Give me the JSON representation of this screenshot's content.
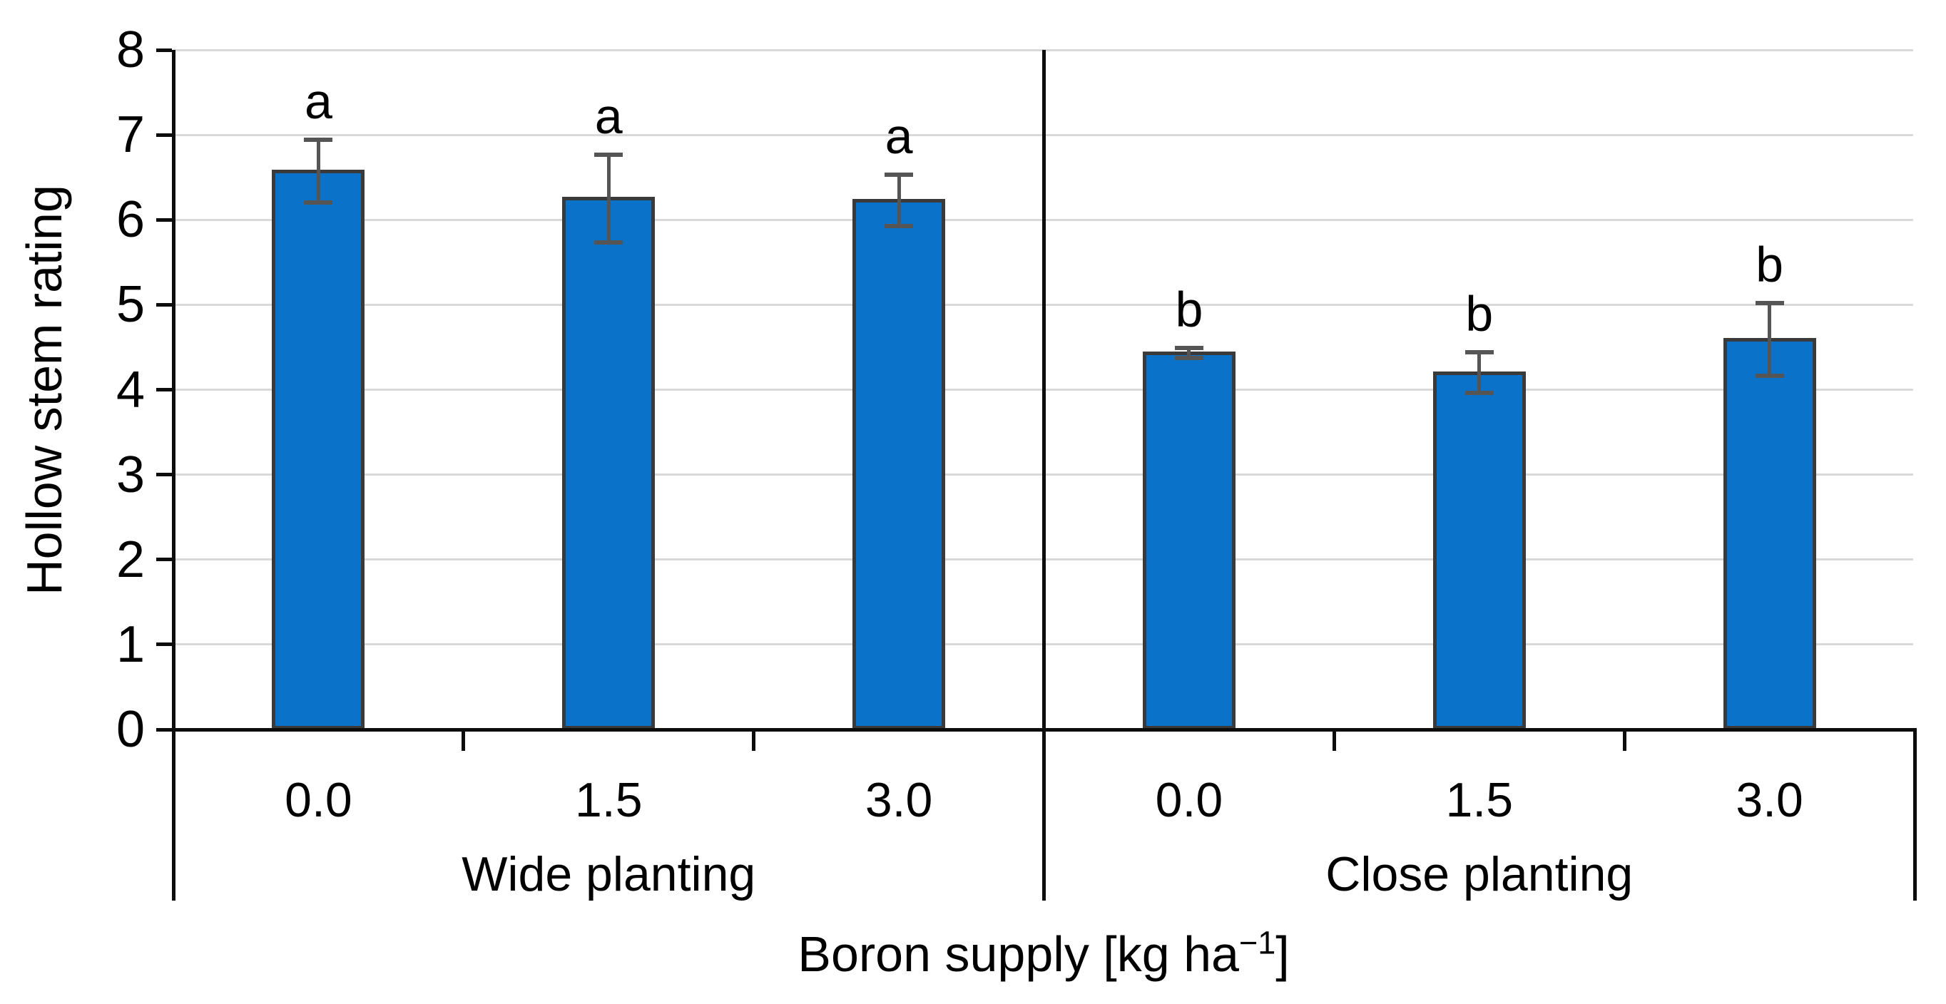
{
  "chart_data": {
    "type": "bar",
    "title": "",
    "ylabel": "Hollow stem rating",
    "xlabel": "Boron supply [kg ha⁻¹]",
    "xlabel_parts": {
      "prefix": "Boron supply [kg ha",
      "superscript": "−1",
      "suffix": "]"
    },
    "ylim": [
      0,
      8
    ],
    "yticks": [
      0,
      1,
      2,
      3,
      4,
      5,
      6,
      7,
      8
    ],
    "grid": "horizontal",
    "legend": "none",
    "colors": {
      "bar_fill": "#0a72c8",
      "bar_border": "#3a3a3a",
      "error_bar": "#555555",
      "gridline": "#d9d9d9",
      "axis": "#0d0d0d",
      "text": "#000000"
    },
    "groups": [
      {
        "label": "Wide planting",
        "categories": [
          "0.0",
          "1.5",
          "3.0"
        ],
        "values": [
          6.57,
          6.25,
          6.23
        ],
        "errors": [
          0.37,
          0.52,
          0.3
        ],
        "sig_letters": [
          "a",
          "a",
          "a"
        ]
      },
      {
        "label": "Close planting",
        "categories": [
          "0.0",
          "1.5",
          "3.0"
        ],
        "values": [
          4.43,
          4.2,
          4.59
        ],
        "errors": [
          0.06,
          0.24,
          0.43
        ],
        "sig_letters": [
          "b",
          "b",
          "b"
        ]
      }
    ]
  }
}
